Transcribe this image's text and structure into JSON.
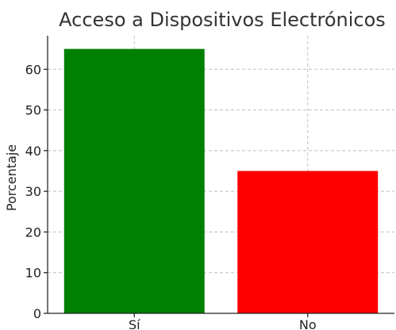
{
  "chart_data": {
    "type": "bar",
    "title": "Acceso a Dispositivos Electrónicos",
    "xlabel": "",
    "ylabel": "Porcentaje",
    "categories": [
      "Sí",
      "No"
    ],
    "values": [
      65,
      35
    ],
    "colors": [
      "#008000",
      "#ff0000"
    ],
    "ylim": [
      0,
      68.25
    ],
    "yticks": [
      0,
      10,
      20,
      30,
      40,
      50,
      60
    ],
    "grid": true,
    "legend": "none"
  }
}
